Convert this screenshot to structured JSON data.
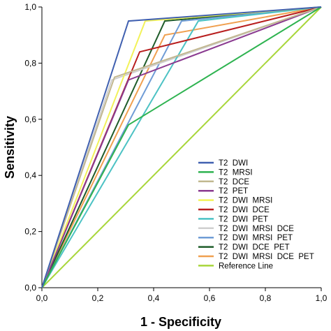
{
  "chart_data": {
    "type": "line",
    "title": "",
    "xlabel": "1 - Specificity",
    "ylabel": "Sensitivity",
    "xlim": [
      0,
      1
    ],
    "ylim": [
      0,
      1
    ],
    "x_ticks": [
      "0,0",
      "0,2",
      "0,4",
      "0,6",
      "0,8",
      "1,0"
    ],
    "y_ticks": [
      "0,0",
      "0,2",
      "0,4",
      "0,6",
      "0,8",
      "1,0"
    ],
    "grid": false,
    "legend_position": "bottom-right",
    "series": [
      {
        "name": "T2  DWI",
        "color": "#4060b0",
        "points": [
          [
            0,
            0
          ],
          [
            0.31,
            0.95
          ],
          [
            1,
            1
          ]
        ]
      },
      {
        "name": "T2  MRSI",
        "color": "#2eb350",
        "points": [
          [
            0,
            0
          ],
          [
            0.31,
            0.58
          ],
          [
            1,
            1
          ]
        ]
      },
      {
        "name": "T2  DCE",
        "color": "#c2b890",
        "points": [
          [
            0,
            0
          ],
          [
            0.26,
            0.75
          ],
          [
            1,
            1
          ]
        ]
      },
      {
        "name": "T2  PET",
        "color": "#8a3a90",
        "points": [
          [
            0,
            0
          ],
          [
            0.31,
            0.74
          ],
          [
            1,
            1
          ]
        ]
      },
      {
        "name": "T2  DWI  MRSI",
        "color": "#f2f25a",
        "points": [
          [
            0,
            0
          ],
          [
            0.37,
            0.95
          ],
          [
            1,
            1
          ]
        ]
      },
      {
        "name": "T2  DWI  DCE",
        "color": "#b81e1e",
        "points": [
          [
            0,
            0
          ],
          [
            0.35,
            0.84
          ],
          [
            1,
            1
          ]
        ]
      },
      {
        "name": "T2  DWI  PET",
        "color": "#4cc2c4",
        "points": [
          [
            0,
            0
          ],
          [
            0.56,
            0.95
          ],
          [
            1,
            1
          ]
        ]
      },
      {
        "name": "T2  DWI  MRSI  DCE",
        "color": "#cfcfcf",
        "points": [
          [
            0,
            0
          ],
          [
            0.25,
            0.74
          ],
          [
            1,
            1
          ]
        ]
      },
      {
        "name": "T2  DWI  MRSI  PET",
        "color": "#6f9cd6",
        "points": [
          [
            0,
            0
          ],
          [
            0.5,
            0.95
          ],
          [
            1,
            1
          ]
        ]
      },
      {
        "name": "T2  DWI  DCE  PET",
        "color": "#1f5c2a",
        "points": [
          [
            0,
            0
          ],
          [
            0.44,
            0.95
          ],
          [
            1,
            1
          ]
        ]
      },
      {
        "name": "T2  DWI  MRSI  DCE  PET",
        "color": "#f0a050",
        "points": [
          [
            0,
            0
          ],
          [
            0.44,
            0.9
          ],
          [
            1,
            1
          ]
        ]
      },
      {
        "name": "Reference Line",
        "color": "#a8d63a",
        "points": [
          [
            0,
            0
          ],
          [
            1,
            1
          ]
        ]
      }
    ]
  }
}
